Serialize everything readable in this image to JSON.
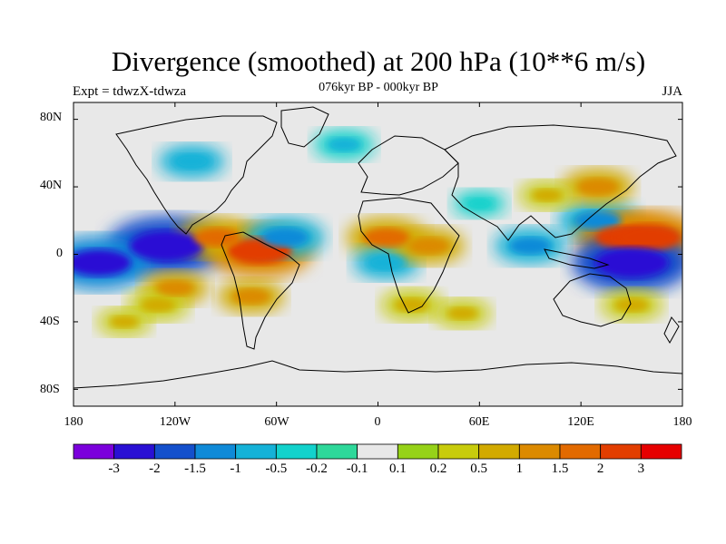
{
  "title": "Divergence (smoothed) at 200 hPa (10**6 m/s)",
  "subtitle": "076kyr BP - 000kyr BP",
  "experiment_label": "Expt = tdwzX-tdwza",
  "season_label": "JJA",
  "y_ticks": [
    "80N",
    "40N",
    "0",
    "40S",
    "80S"
  ],
  "x_ticks": [
    "180",
    "120W",
    "60W",
    "0",
    "60E",
    "120E",
    "180"
  ],
  "colorbar": {
    "colors": [
      "#7b00dc",
      "#2a10d4",
      "#1450cc",
      "#0f8ad8",
      "#15b2d8",
      "#12d2cc",
      "#2ed89a",
      "#e8e8e8",
      "#96d218",
      "#c8cc0c",
      "#d2aa00",
      "#dc8a00",
      "#e26a00",
      "#e23e00",
      "#e60000"
    ],
    "labels": [
      "-3",
      "-2",
      "-1.5",
      "-1",
      "-0.5",
      "-0.2",
      "-0.1",
      "0.1",
      "0.2",
      "0.5",
      "1",
      "1.5",
      "2",
      "3"
    ]
  },
  "chart_data": {
    "type": "heatmap",
    "title": "Divergence (smoothed) at 200 hPa (10**6 m/s)",
    "subtitle": "076kyr BP - 000kyr BP",
    "xlabel": "",
    "ylabel": "",
    "xlim": [
      -180,
      180
    ],
    "ylim": [
      -90,
      90
    ],
    "x_ticks": [
      "180",
      "120W",
      "60W",
      "0",
      "60E",
      "120E",
      "180"
    ],
    "y_ticks": [
      "80N",
      "40N",
      "0",
      "40S",
      "80S"
    ],
    "levels": [
      -3,
      -2,
      -1.5,
      -1,
      -0.5,
      -0.2,
      -0.1,
      0.1,
      0.2,
      0.5,
      1,
      1.5,
      2,
      3
    ],
    "features": [
      {
        "lon": -125,
        "lat": 5,
        "value": -3.0
      },
      {
        "lon": -165,
        "lat": -5,
        "value": -2.5
      },
      {
        "lon": -70,
        "lat": 2,
        "value": 2.5
      },
      {
        "lon": -95,
        "lat": 10,
        "value": 1.5
      },
      {
        "lon": -55,
        "lat": 10,
        "value": -1.5
      },
      {
        "lon": -75,
        "lat": -25,
        "value": 1.0
      },
      {
        "lon": 5,
        "lat": 10,
        "value": 1.5
      },
      {
        "lon": 5,
        "lat": -5,
        "value": -1.0
      },
      {
        "lon": 30,
        "lat": 5,
        "value": 1.2
      },
      {
        "lon": 90,
        "lat": 5,
        "value": -1.2
      },
      {
        "lon": 130,
        "lat": 20,
        "value": -1.5
      },
      {
        "lon": 145,
        "lat": 10,
        "value": 2.0
      },
      {
        "lon": 160,
        "lat": 10,
        "value": 2.5
      },
      {
        "lon": 150,
        "lat": -5,
        "value": -3.0
      },
      {
        "lon": 130,
        "lat": 40,
        "value": 1.2
      },
      {
        "lon": -120,
        "lat": -20,
        "value": 1.0
      },
      {
        "lon": -130,
        "lat": -30,
        "value": 0.8
      },
      {
        "lon": -110,
        "lat": 55,
        "value": -1.0
      },
      {
        "lon": -20,
        "lat": 65,
        "value": -0.8
      },
      {
        "lon": 20,
        "lat": -30,
        "value": 0.8
      },
      {
        "lon": 50,
        "lat": -35,
        "value": 0.6
      },
      {
        "lon": 150,
        "lat": -30,
        "value": 0.8
      },
      {
        "lon": -150,
        "lat": -40,
        "value": 0.5
      },
      {
        "lon": 60,
        "lat": 30,
        "value": -0.5
      },
      {
        "lon": 100,
        "lat": 35,
        "value": 0.6
      }
    ]
  }
}
